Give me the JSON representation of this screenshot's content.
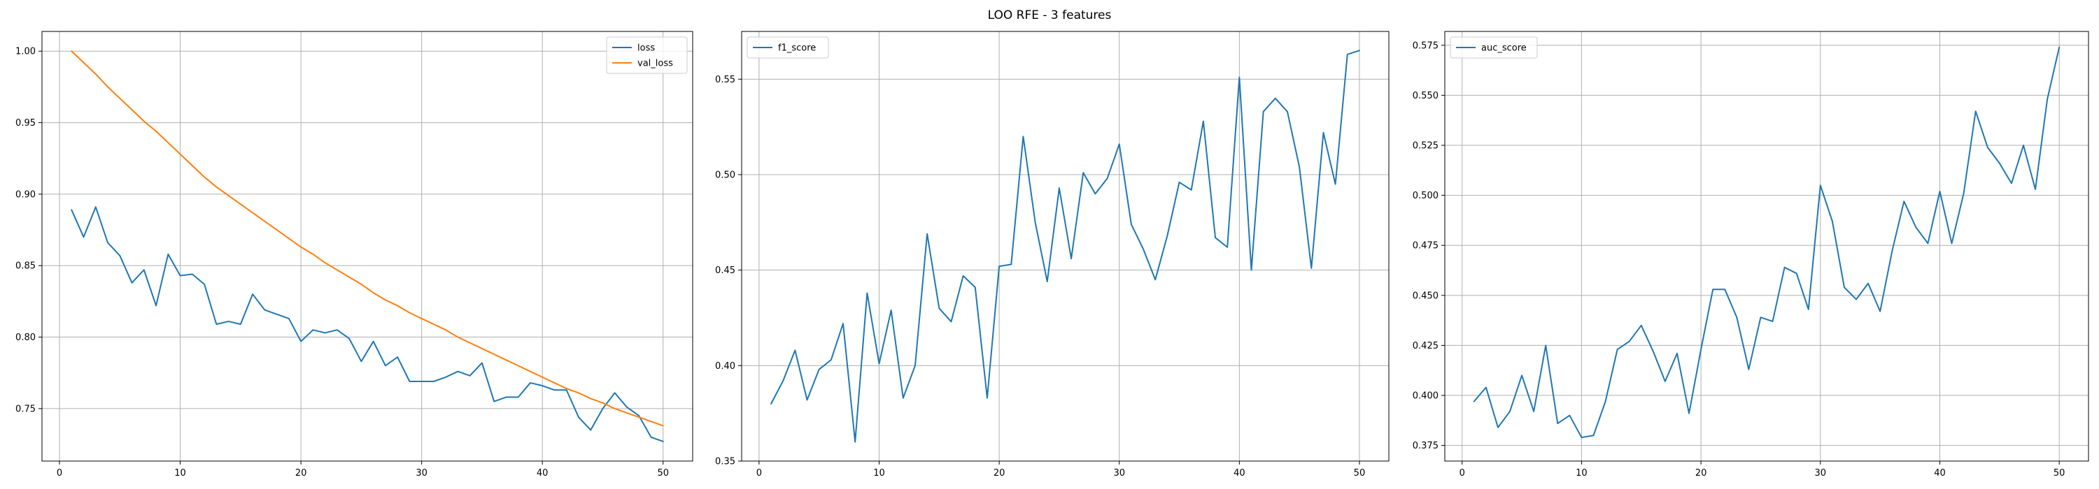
{
  "figure": {
    "title": "LOO RFE - 3 features"
  },
  "chart_data": [
    {
      "type": "line",
      "title": "",
      "xlabel": "",
      "ylabel": "",
      "xlim": [
        -1.45,
        52.45
      ],
      "ylim": [
        0.7133,
        1.0138
      ],
      "xticks": [
        0,
        10,
        20,
        30,
        40,
        50
      ],
      "yticks": [
        0.75,
        0.8,
        0.85,
        0.9,
        0.95,
        1.0
      ],
      "ytick_decimals": 2,
      "grid": true,
      "legend": "top-right",
      "x": [
        1,
        2,
        3,
        4,
        5,
        6,
        7,
        8,
        9,
        10,
        11,
        12,
        13,
        14,
        15,
        16,
        17,
        18,
        19,
        20,
        21,
        22,
        23,
        24,
        25,
        26,
        27,
        28,
        29,
        30,
        31,
        32,
        33,
        34,
        35,
        36,
        37,
        38,
        39,
        40,
        41,
        42,
        43,
        44,
        45,
        46,
        47,
        48,
        49,
        50
      ],
      "series": [
        {
          "name": "loss",
          "color": "#1f77b4",
          "values": [
            0.889,
            0.87,
            0.891,
            0.866,
            0.857,
            0.838,
            0.847,
            0.822,
            0.858,
            0.843,
            0.844,
            0.837,
            0.809,
            0.811,
            0.809,
            0.83,
            0.819,
            0.816,
            0.813,
            0.797,
            0.805,
            0.803,
            0.805,
            0.799,
            0.783,
            0.797,
            0.78,
            0.786,
            0.769,
            0.769,
            0.769,
            0.772,
            0.776,
            0.773,
            0.782,
            0.755,
            0.758,
            0.758,
            0.768,
            0.766,
            0.763,
            0.763,
            0.744,
            0.735,
            0.75,
            0.761,
            0.751,
            0.745,
            0.73,
            0.727
          ]
        },
        {
          "name": "val_loss",
          "color": "#ff7f0e",
          "values": [
            1.0,
            0.992,
            0.984,
            0.975,
            0.967,
            0.959,
            0.951,
            0.944,
            0.936,
            0.928,
            0.92,
            0.912,
            0.905,
            0.899,
            0.893,
            0.887,
            0.881,
            0.875,
            0.869,
            0.863,
            0.858,
            0.852,
            0.847,
            0.842,
            0.837,
            0.831,
            0.826,
            0.822,
            0.817,
            0.813,
            0.809,
            0.805,
            0.8,
            0.796,
            0.792,
            0.788,
            0.784,
            0.78,
            0.776,
            0.772,
            0.768,
            0.764,
            0.761,
            0.757,
            0.754,
            0.75,
            0.747,
            0.744,
            0.741,
            0.738
          ]
        }
      ]
    },
    {
      "type": "line",
      "title": "",
      "xlabel": "",
      "ylabel": "",
      "xlim": [
        -1.45,
        52.45
      ],
      "ylim": [
        0.35,
        0.575
      ],
      "xticks": [
        0,
        10,
        20,
        30,
        40,
        50
      ],
      "yticks": [
        0.35,
        0.4,
        0.45,
        0.5,
        0.55
      ],
      "ytick_decimals": 2,
      "grid": true,
      "legend": "top-left",
      "x": [
        1,
        2,
        3,
        4,
        5,
        6,
        7,
        8,
        9,
        10,
        11,
        12,
        13,
        14,
        15,
        16,
        17,
        18,
        19,
        20,
        21,
        22,
        23,
        24,
        25,
        26,
        27,
        28,
        29,
        30,
        31,
        32,
        33,
        34,
        35,
        36,
        37,
        38,
        39,
        40,
        41,
        42,
        43,
        44,
        45,
        46,
        47,
        48,
        49,
        50
      ],
      "series": [
        {
          "name": "f1_score",
          "color": "#1f77b4",
          "values": [
            0.38,
            0.392,
            0.408,
            0.382,
            0.398,
            0.403,
            0.422,
            0.36,
            0.438,
            0.401,
            0.429,
            0.383,
            0.4,
            0.469,
            0.43,
            0.423,
            0.447,
            0.441,
            0.383,
            0.452,
            0.453,
            0.52,
            0.475,
            0.444,
            0.493,
            0.456,
            0.501,
            0.49,
            0.498,
            0.516,
            0.474,
            0.461,
            0.445,
            0.468,
            0.496,
            0.492,
            0.528,
            0.467,
            0.462,
            0.551,
            0.45,
            0.533,
            0.54,
            0.533,
            0.504,
            0.451,
            0.522,
            0.495,
            0.563,
            0.565
          ]
        }
      ]
    },
    {
      "type": "line",
      "title": "",
      "xlabel": "",
      "ylabel": "",
      "xlim": [
        -1.45,
        52.45
      ],
      "ylim": [
        0.3672,
        0.5819
      ],
      "xticks": [
        0,
        10,
        20,
        30,
        40,
        50
      ],
      "yticks": [
        0.375,
        0.4,
        0.425,
        0.45,
        0.475,
        0.5,
        0.525,
        0.55,
        0.575
      ],
      "ytick_decimals": 3,
      "grid": true,
      "legend": "top-left",
      "x": [
        1,
        2,
        3,
        4,
        5,
        6,
        7,
        8,
        9,
        10,
        11,
        12,
        13,
        14,
        15,
        16,
        17,
        18,
        19,
        20,
        21,
        22,
        23,
        24,
        25,
        26,
        27,
        28,
        29,
        30,
        31,
        32,
        33,
        34,
        35,
        36,
        37,
        38,
        39,
        40,
        41,
        42,
        43,
        44,
        45,
        46,
        47,
        48,
        49,
        50
      ],
      "series": [
        {
          "name": "auc_score",
          "color": "#1f77b4",
          "values": [
            0.397,
            0.404,
            0.384,
            0.392,
            0.41,
            0.392,
            0.425,
            0.386,
            0.39,
            0.379,
            0.38,
            0.397,
            0.423,
            0.427,
            0.435,
            0.422,
            0.407,
            0.421,
            0.391,
            0.423,
            0.453,
            0.453,
            0.439,
            0.413,
            0.439,
            0.437,
            0.464,
            0.461,
            0.443,
            0.505,
            0.487,
            0.454,
            0.448,
            0.456,
            0.442,
            0.472,
            0.497,
            0.484,
            0.476,
            0.502,
            0.476,
            0.501,
            0.542,
            0.524,
            0.516,
            0.506,
            0.525,
            0.503,
            0.548,
            0.574
          ]
        }
      ]
    }
  ]
}
